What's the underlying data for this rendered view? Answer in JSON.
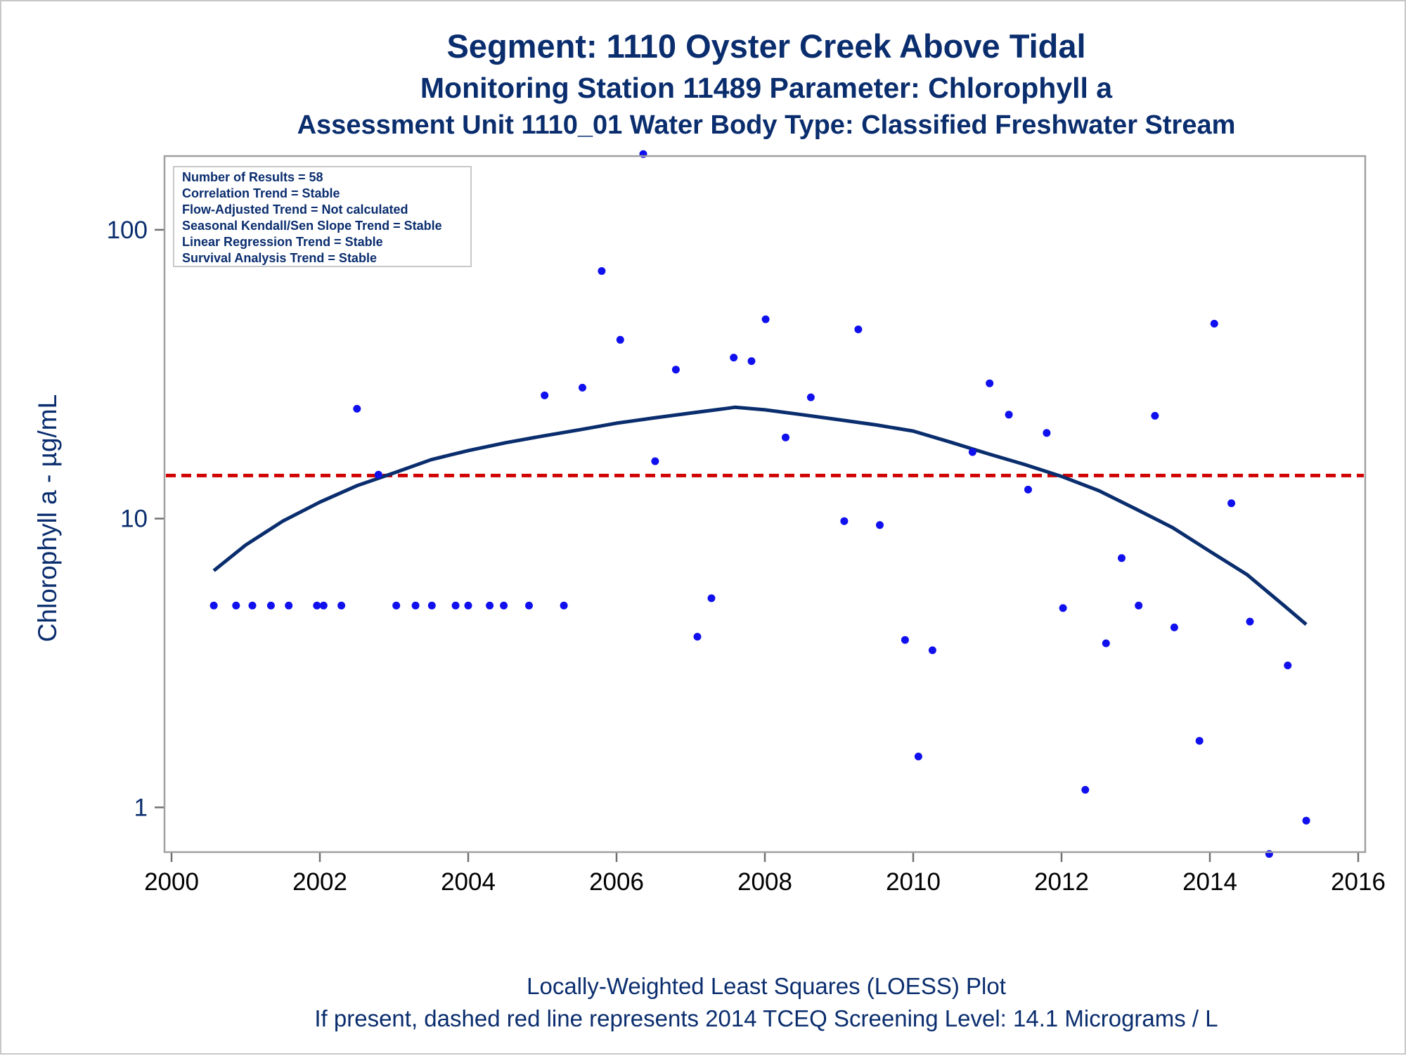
{
  "chart_data": {
    "type": "scatter",
    "title": "Segment: 1110  Oyster Creek Above Tidal",
    "subtitle1": "Monitoring Station 11489 Parameter: Chlorophyll a",
    "subtitle2": "Assessment Unit 1110_01   Water Body Type: Classified Freshwater Stream",
    "xlabel": "",
    "ylabel": "Chlorophyll a -  µg/mL",
    "xlim": [
      2000,
      2016
    ],
    "ylim": [
      0.7,
      180
    ],
    "y_scale": "log",
    "x_ticks": [
      2000,
      2002,
      2004,
      2006,
      2008,
      2010,
      2012,
      2014,
      2016
    ],
    "y_ticks": [
      1,
      10,
      100
    ],
    "x_tick_labels": [
      "2000",
      "2002",
      "2004",
      "2006",
      "2008",
      "2010",
      "2012",
      "2014",
      "2016"
    ],
    "y_tick_labels": [
      "1",
      "10",
      "100"
    ],
    "info_box": [
      "Number of Results = 58",
      "Correlation Trend = Stable",
      "Flow-Adjusted Trend = Not calculated",
      "Seasonal Kendall/Sen Slope Trend = Stable",
      "Linear Regression Trend = Stable",
      "Survival Analysis Trend = Stable"
    ],
    "screening_level": 14.1,
    "footnotes": [
      "Locally-Weighted Least Squares (LOESS) Plot",
      "If present, dashed red line represents 2014 TCEQ Screening Level: 14.1 Micrograms / L"
    ],
    "series": [
      {
        "type": "scatter",
        "x": [
          2000.57,
          2000.87,
          2001.09,
          2001.34,
          2001.58,
          2001.96,
          2002.05,
          2002.29,
          2002.5,
          2002.79,
          2003.03,
          2003.29,
          2003.51,
          2003.83,
          2004.0,
          2004.29,
          2004.48,
          2004.82,
          2005.03,
          2005.29,
          2005.54,
          2005.8,
          2006.05,
          2006.36,
          2006.52,
          2006.8,
          2007.09,
          2007.28,
          2007.58,
          2007.82,
          2008.01,
          2008.28,
          2008.62,
          2009.07,
          2009.26,
          2009.55,
          2009.89,
          2010.07,
          2010.26,
          2010.8,
          2011.03,
          2011.29,
          2011.55,
          2011.8,
          2012.02,
          2012.32,
          2012.6,
          2012.81,
          2013.04,
          2013.26,
          2013.52,
          2013.86,
          2014.06,
          2014.29,
          2014.54,
          2014.8,
          2015.05,
          2015.3
        ],
        "y": [
          5.0,
          5.0,
          5.0,
          5.0,
          5.0,
          5.0,
          5.0,
          5.0,
          24.0,
          14.2,
          5.0,
          5.0,
          5.0,
          5.0,
          5.0,
          5.0,
          5.0,
          5.0,
          26.7,
          5.0,
          28.4,
          72.0,
          41.6,
          183.0,
          15.8,
          32.8,
          3.9,
          5.3,
          36.1,
          35.1,
          49.0,
          19.1,
          26.3,
          9.8,
          45.2,
          9.5,
          3.8,
          1.5,
          3.5,
          17.0,
          29.4,
          22.9,
          12.6,
          19.8,
          4.9,
          1.15,
          3.7,
          7.3,
          5.0,
          22.7,
          4.2,
          1.7,
          47.3,
          11.3,
          4.4,
          0.69,
          3.1,
          0.9
        ],
        "color": "#1010ee"
      },
      {
        "type": "line",
        "x": [
          2000.57,
          2001.0,
          2001.5,
          2002.0,
          2002.5,
          2003.0,
          2003.5,
          2004.0,
          2004.5,
          2005.0,
          2005.5,
          2006.0,
          2006.5,
          2007.0,
          2007.5,
          2007.6,
          2008.0,
          2008.5,
          2009.0,
          2009.5,
          2010.0,
          2010.5,
          2011.0,
          2011.5,
          2012.0,
          2012.5,
          2013.0,
          2013.5,
          2014.0,
          2014.5,
          2015.0,
          2015.3
        ],
        "y": [
          6.6,
          8.1,
          9.8,
          11.4,
          13.0,
          14.4,
          16.0,
          17.2,
          18.3,
          19.3,
          20.3,
          21.4,
          22.3,
          23.2,
          24.1,
          24.3,
          23.8,
          22.9,
          22.0,
          21.1,
          20.1,
          18.4,
          16.8,
          15.4,
          14.0,
          12.5,
          10.8,
          9.3,
          7.7,
          6.4,
          5.0,
          4.3
        ],
        "color": "#0a2d6e"
      }
    ]
  },
  "colors": {
    "text": "#0a2d6e",
    "points": "#1010ee",
    "loess": "#0a2d6e",
    "screening": "#d00000",
    "frame": "#a0a0a0"
  }
}
